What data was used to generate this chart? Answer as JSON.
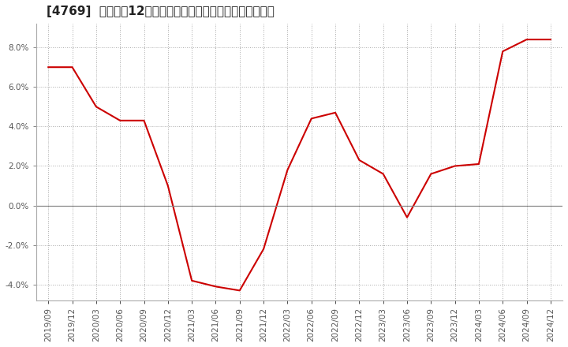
{
  "title": "[4769]  売上高の12か月移動合計の対前年同期増減率の推移",
  "x_labels": [
    "2019/09",
    "2019/12",
    "2020/03",
    "2020/06",
    "2020/09",
    "2020/12",
    "2021/03",
    "2021/06",
    "2021/09",
    "2021/12",
    "2022/03",
    "2022/06",
    "2022/09",
    "2022/12",
    "2023/03",
    "2023/06",
    "2023/09",
    "2023/12",
    "2024/03",
    "2024/06",
    "2024/09",
    "2024/12"
  ],
  "y_values": [
    7.0,
    7.0,
    5.0,
    4.3,
    4.3,
    1.0,
    -3.8,
    -4.1,
    -4.3,
    -2.2,
    1.8,
    4.4,
    4.7,
    2.3,
    1.6,
    -0.6,
    1.6,
    2.0,
    2.1,
    7.8,
    8.4,
    8.4
  ],
  "line_color": "#cc0000",
  "background_color": "#ffffff",
  "plot_bg_color": "#ffffff",
  "grid_color": "#aaaaaa",
  "zero_line_color": "#888888",
  "ylim": [
    -4.8,
    9.2
  ],
  "yticks": [
    -4.0,
    -2.0,
    0.0,
    2.0,
    4.0,
    6.0,
    8.0
  ],
  "title_fontsize": 11,
  "tick_fontsize": 7.5,
  "line_width": 1.5
}
